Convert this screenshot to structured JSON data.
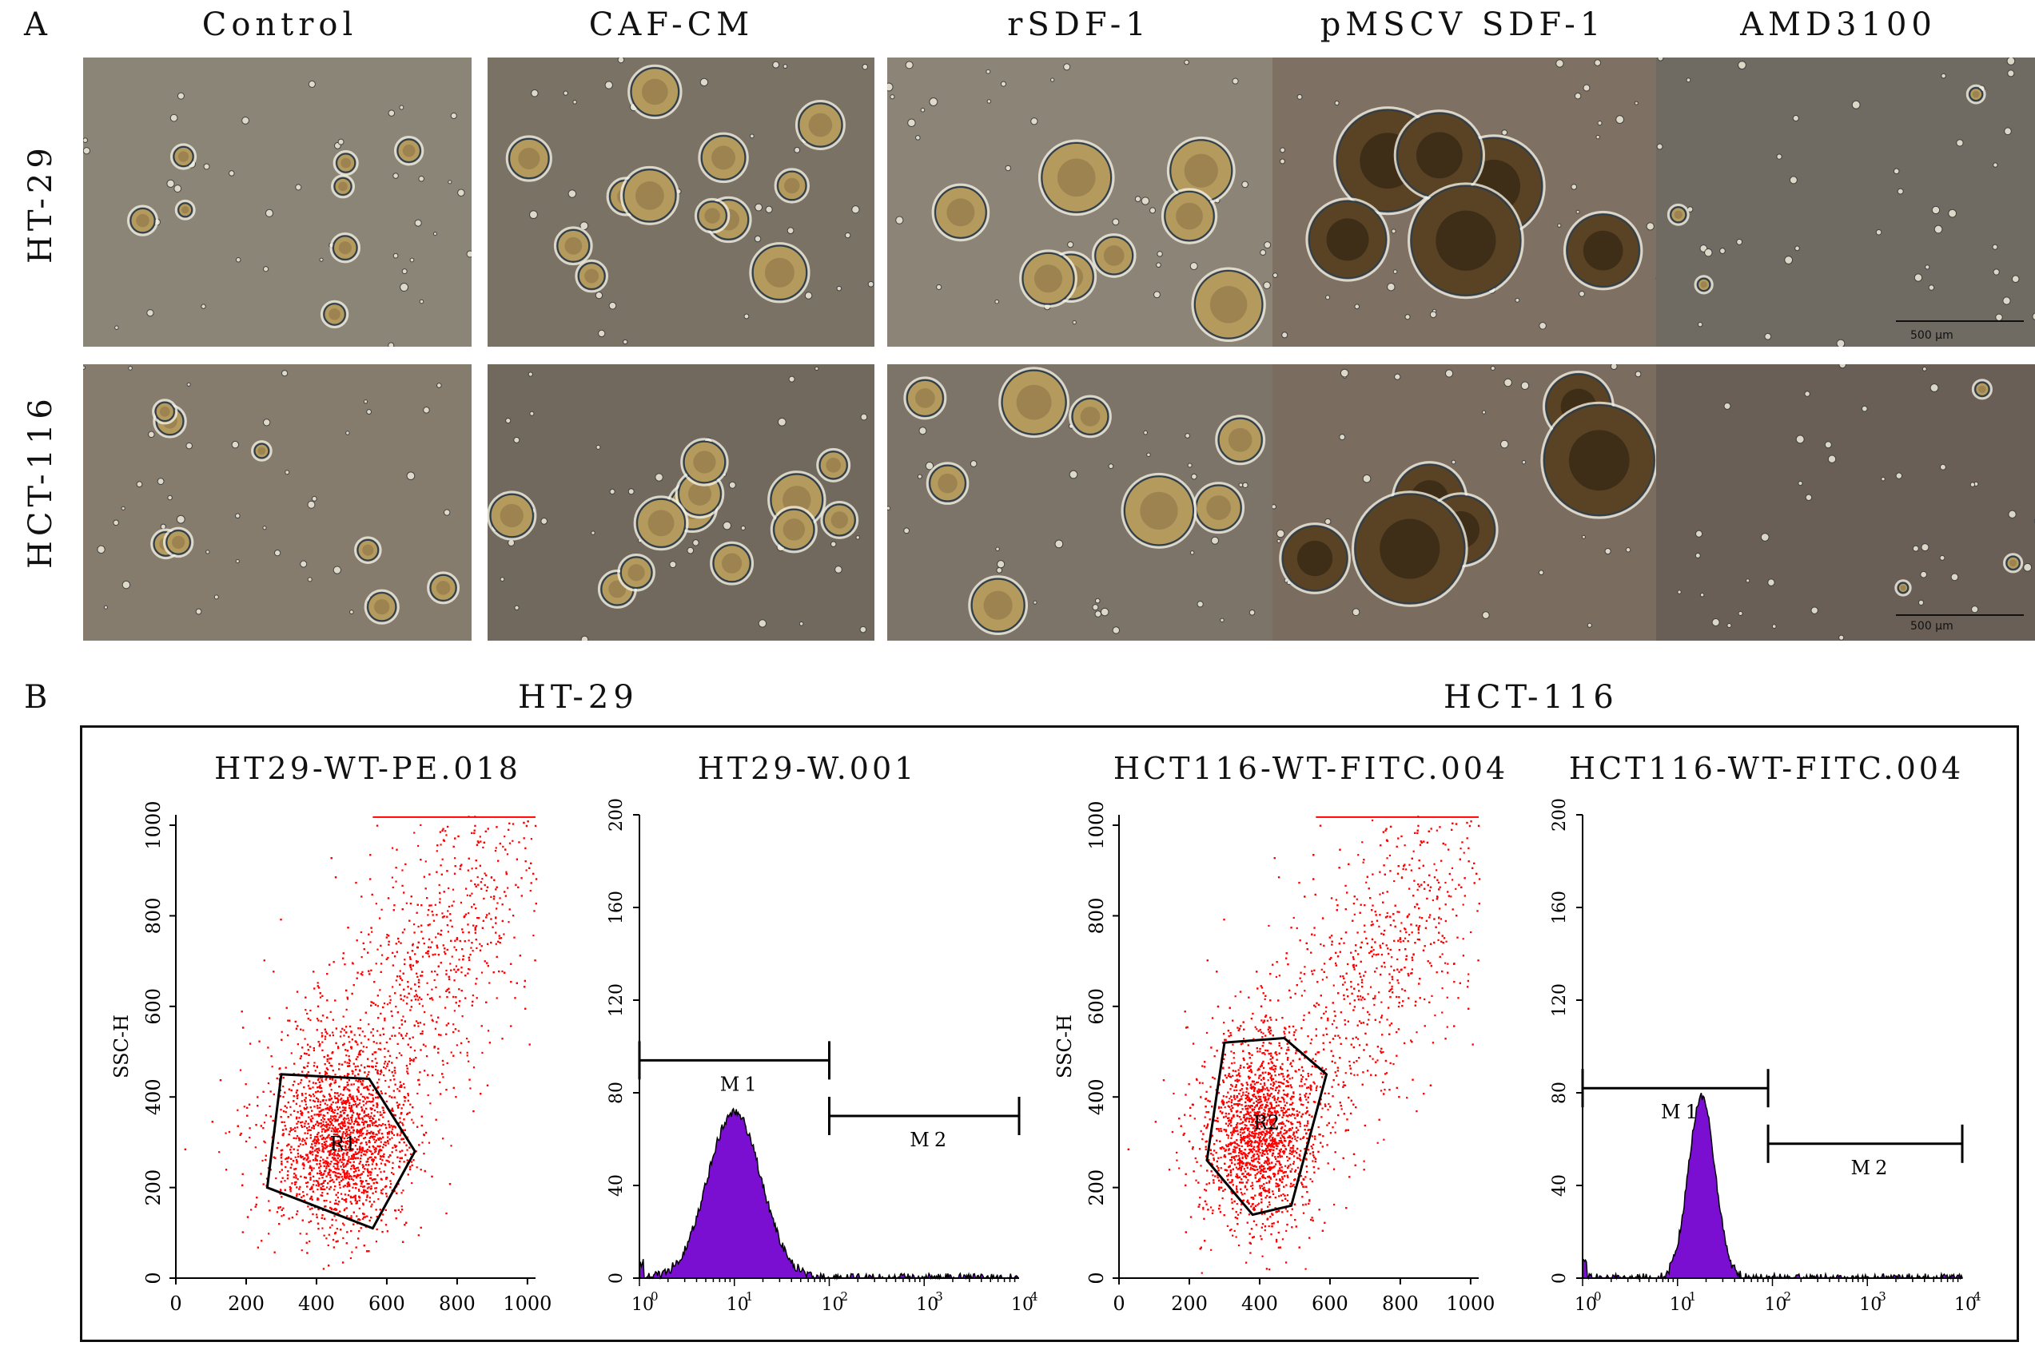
{
  "panel_a": {
    "letter": "A",
    "column_titles": [
      "Control",
      "CAF-CM",
      "rSDF-1",
      "pMSCV SDF-1",
      "AMD3100"
    ],
    "row_labels": [
      "HT-29",
      "HCT-116"
    ],
    "scale_bar_label": "500 μm"
  },
  "panel_b": {
    "letter": "B",
    "group_titles": [
      "HT-29",
      "HCT-116"
    ],
    "plot_titles": [
      "HT29-WT-PE.018",
      "HT29-W.001",
      "HCT116-WT-FITC.004",
      "HCT116-WT-FITC.004"
    ],
    "scatter_ylabel": "SSC-H",
    "gate_labels": [
      "R1",
      "R2"
    ],
    "marker_labels": [
      "M1",
      "M2"
    ]
  },
  "colors": {
    "dots": "#ff0000",
    "histogram": "#7a0fd1",
    "photo_bg": "#6b6256"
  },
  "chart_data": [
    {
      "type": "scatter",
      "title": "HT29-WT-PE.018",
      "xlabel": "",
      "ylabel": "SSC-H",
      "xlim": [
        0,
        1023
      ],
      "ylim": [
        0,
        1023
      ],
      "x_ticks": [
        "0",
        "200",
        "400",
        "600",
        "800",
        "1000"
      ],
      "y_ticks": [
        "0",
        "200",
        "400",
        "600",
        "800",
        "1000"
      ],
      "gate": {
        "name": "R1",
        "polygon": [
          [
            260,
            200
          ],
          [
            300,
            450
          ],
          [
            550,
            440
          ],
          [
            680,
            280
          ],
          [
            560,
            110
          ]
        ]
      },
      "cluster": {
        "center": [
          480,
          300
        ],
        "spread": [
          200,
          200
        ]
      }
    },
    {
      "type": "histogram",
      "title": "HT29-W.001",
      "xscale": "log",
      "xlim": [
        1,
        10000
      ],
      "ylim": [
        0,
        200
      ],
      "x_ticks": [
        "10^0",
        "10^1",
        "10^2",
        "10^3",
        "10^4"
      ],
      "y_ticks": [
        "0",
        "40",
        "80",
        "120",
        "160",
        "200"
      ],
      "peak": {
        "x": 10,
        "y": 72
      },
      "markers": [
        {
          "name": "M1",
          "from": 1,
          "to": 100,
          "y": 94
        },
        {
          "name": "M2",
          "from": 100,
          "to": 10000,
          "y": 70
        }
      ]
    },
    {
      "type": "scatter",
      "title": "HCT116-WT-FITC.004",
      "xlabel": "",
      "ylabel": "SSC-H",
      "xlim": [
        0,
        1023
      ],
      "ylim": [
        0,
        1023
      ],
      "x_ticks": [
        "0",
        "200",
        "400",
        "600",
        "800",
        "1000"
      ],
      "y_ticks": [
        "0",
        "200",
        "400",
        "600",
        "800",
        "1000"
      ],
      "gate": {
        "name": "R2",
        "polygon": [
          [
            250,
            260
          ],
          [
            300,
            520
          ],
          [
            470,
            530
          ],
          [
            590,
            450
          ],
          [
            490,
            160
          ],
          [
            380,
            140
          ]
        ]
      },
      "cluster": {
        "center": [
          400,
          320
        ],
        "spread": [
          170,
          210
        ]
      }
    },
    {
      "type": "histogram",
      "title": "HCT116-WT-FITC.004",
      "xscale": "log",
      "xlim": [
        1,
        10000
      ],
      "ylim": [
        0,
        200
      ],
      "x_ticks": [
        "10^0",
        "10^1",
        "10^2",
        "10^3",
        "10^4"
      ],
      "y_ticks": [
        "0",
        "40",
        "80",
        "120",
        "160",
        "200"
      ],
      "peak": {
        "x": 18,
        "y": 78
      },
      "markers": [
        {
          "name": "M1",
          "from": 1,
          "to": 90,
          "y": 82
        },
        {
          "name": "M2",
          "from": 90,
          "to": 10000,
          "y": 58
        }
      ]
    }
  ]
}
